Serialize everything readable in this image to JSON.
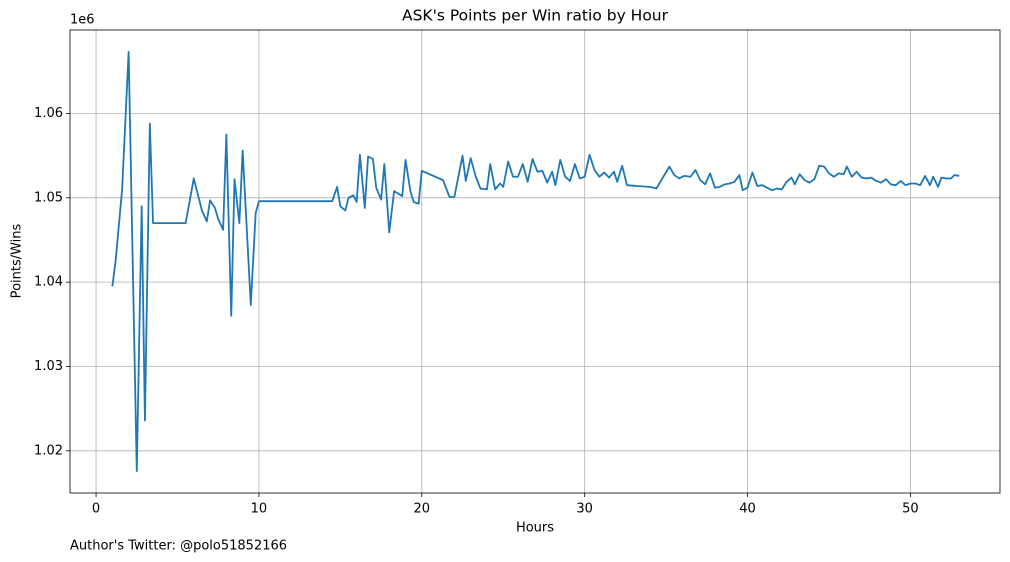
{
  "chart_data": {
    "type": "line",
    "title": "ASK's Points per Win ratio by Hour",
    "xlabel": "Hours",
    "ylabel": "Points/Wins",
    "y_offset_label": "1e6",
    "footer": "Author's Twitter: @polo51852166",
    "color": "#1f77b4",
    "grid": true,
    "xlim": [
      -1.6,
      55.5
    ],
    "ylim": [
      1015000,
      1069900
    ],
    "xticks": [
      0,
      10,
      20,
      30,
      40,
      50
    ],
    "yticks": [
      {
        "value": 1020000,
        "label": "1.02"
      },
      {
        "value": 1030000,
        "label": "1.03"
      },
      {
        "value": 1040000,
        "label": "1.04"
      },
      {
        "value": 1050000,
        "label": "1.05"
      },
      {
        "value": 1060000,
        "label": "1.06"
      }
    ],
    "x": [
      1.0,
      1.2,
      1.6,
      2.0,
      2.5,
      2.8,
      3.0,
      3.3,
      3.5,
      5.5,
      6.0,
      6.5,
      6.8,
      7.0,
      7.3,
      7.5,
      7.8,
      8.0,
      8.3,
      8.5,
      8.8,
      9.0,
      9.5,
      9.8,
      10.0,
      14.5,
      14.8,
      15.0,
      15.3,
      15.5,
      15.8,
      16.0,
      16.2,
      16.5,
      16.7,
      17.0,
      17.2,
      17.5,
      17.7,
      18.0,
      18.3,
      18.8,
      19.0,
      19.3,
      19.5,
      19.8,
      20.0,
      21.3,
      21.7,
      22.0,
      22.5,
      22.7,
      23.0,
      23.3,
      23.6,
      24.0,
      24.2,
      24.5,
      24.8,
      25.0,
      25.3,
      25.6,
      25.9,
      26.2,
      26.5,
      26.8,
      27.1,
      27.4,
      27.7,
      28.0,
      28.2,
      28.5,
      28.8,
      29.1,
      29.4,
      29.7,
      30.0,
      30.3,
      30.6,
      30.9,
      31.2,
      31.5,
      31.8,
      32.0,
      32.3,
      32.6,
      33.2,
      34.0,
      34.4,
      35.2,
      35.5,
      35.8,
      36.1,
      36.5,
      36.8,
      37.1,
      37.4,
      37.7,
      38.0,
      38.3,
      38.6,
      38.9,
      39.2,
      39.5,
      39.7,
      40.0,
      40.3,
      40.6,
      40.9,
      41.2,
      41.5,
      41.8,
      42.1,
      42.4,
      42.7,
      42.9,
      43.2,
      43.5,
      43.8,
      44.1,
      44.4,
      44.7,
      45.0,
      45.3,
      45.6,
      45.9,
      46.1,
      46.4,
      46.7,
      47.0,
      47.3,
      47.6,
      47.9,
      48.2,
      48.5,
      48.8,
      49.1,
      49.4,
      49.7,
      50.0,
      50.3,
      50.6,
      50.9,
      51.2,
      51.4,
      51.7,
      51.9,
      52.2,
      52.5,
      52.7,
      53.0
    ],
    "values": [
      1039500,
      1042500,
      1051000,
      1067300,
      1017600,
      1049000,
      1023600,
      1058800,
      1047000,
      1047000,
      1052300,
      1048500,
      1047200,
      1049700,
      1048800,
      1047500,
      1046200,
      1057500,
      1036000,
      1052200,
      1047000,
      1055600,
      1037300,
      1048200,
      1049600,
      1049600,
      1051300,
      1049000,
      1048500,
      1050000,
      1050300,
      1049500,
      1055100,
      1048800,
      1054900,
      1054600,
      1051200,
      1049800,
      1054000,
      1045900,
      1050800,
      1050200,
      1054500,
      1050800,
      1049500,
      1049300,
      1053200,
      1052100,
      1050100,
      1050100,
      1055000,
      1052000,
      1054700,
      1052600,
      1051100,
      1051000,
      1054000,
      1051000,
      1051700,
      1051300,
      1054300,
      1052500,
      1052500,
      1054000,
      1051900,
      1054600,
      1053100,
      1053200,
      1051800,
      1053100,
      1051500,
      1054500,
      1052500,
      1052000,
      1054000,
      1052300,
      1052500,
      1055100,
      1053300,
      1052500,
      1053000,
      1052400,
      1053100,
      1051900,
      1053800,
      1051500,
      1051400,
      1051300,
      1051100,
      1053700,
      1052700,
      1052300,
      1052600,
      1052500,
      1053300,
      1052100,
      1051600,
      1052900,
      1051200,
      1051300,
      1051600,
      1051700,
      1051900,
      1052700,
      1050900,
      1051200,
      1053000,
      1051400,
      1051500,
      1051200,
      1050900,
      1051100,
      1051000,
      1051900,
      1052400,
      1051600,
      1052800,
      1052100,
      1051800,
      1052200,
      1053800,
      1053700,
      1052900,
      1052500,
      1052900,
      1052800,
      1053700,
      1052500,
      1053100,
      1052400,
      1052300,
      1052400,
      1052000,
      1051800,
      1052200,
      1051600,
      1051500,
      1052000,
      1051500,
      1051700,
      1051700,
      1051500,
      1052600,
      1051500,
      1052500,
      1051300,
      1052400,
      1052300,
      1052300,
      1052700,
      1052600
    ]
  }
}
